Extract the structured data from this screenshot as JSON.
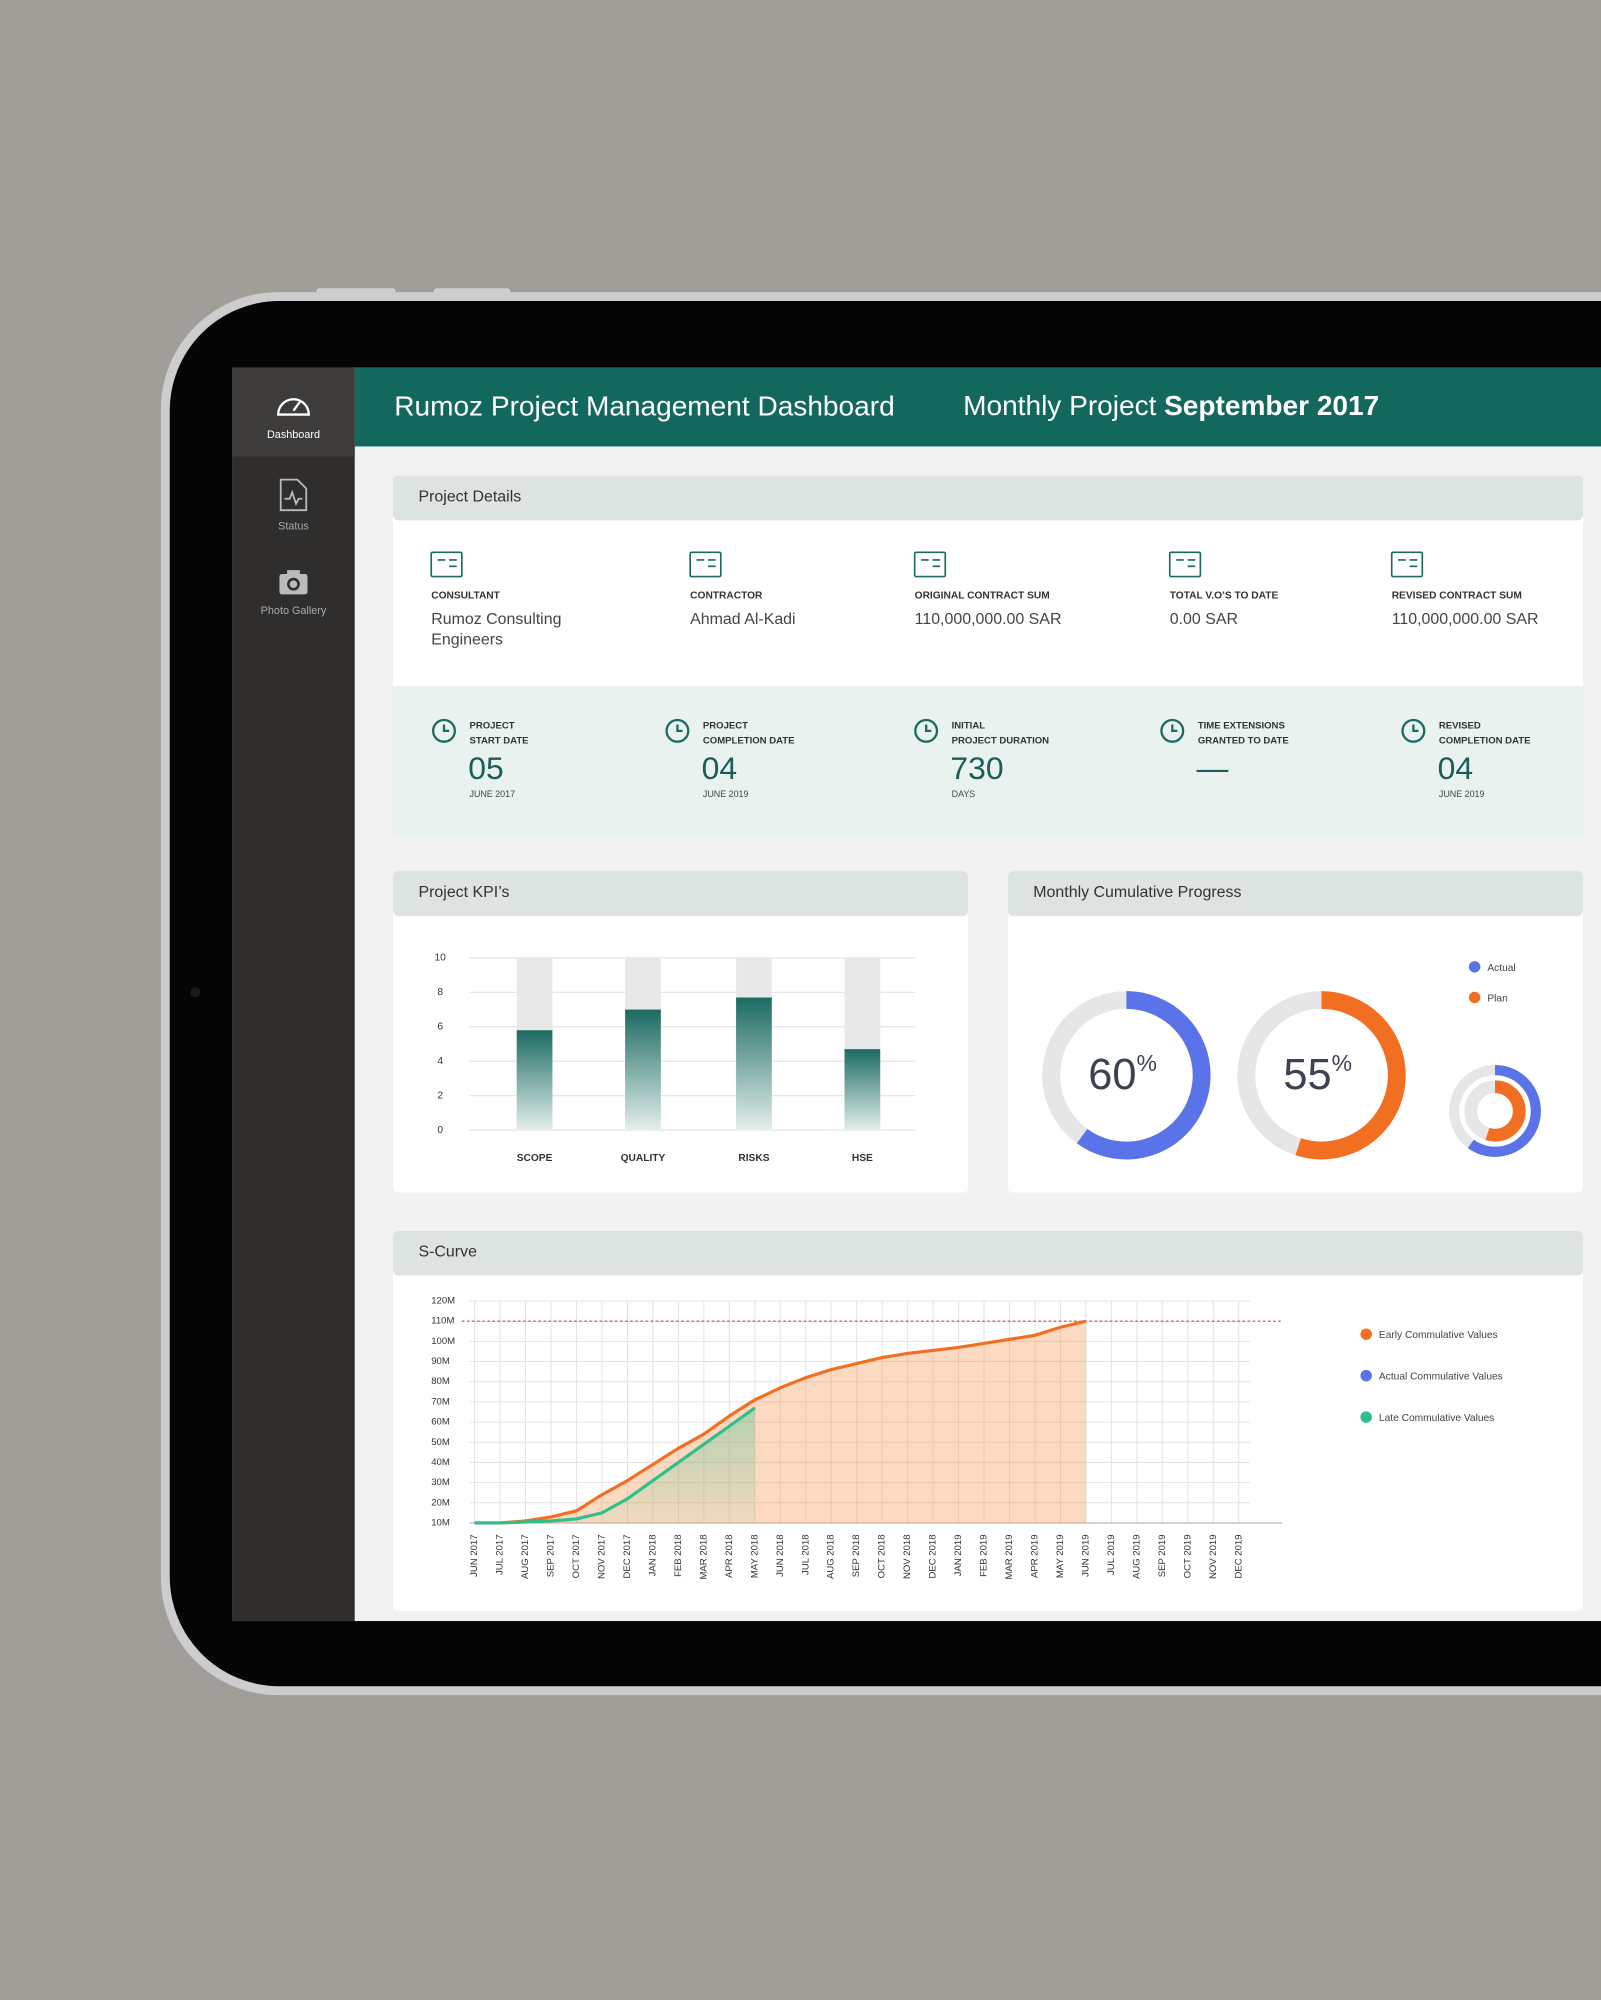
{
  "sidebar": {
    "items": [
      "Dashboard",
      "Status",
      "Photo Gallery"
    ]
  },
  "header": {
    "title": "Rumoz Project Management Dashboard",
    "period_label": "Monthly Project",
    "period": "September 2017"
  },
  "project_details": {
    "title": "Project Details",
    "items": [
      {
        "label": "CONSULTANT",
        "value": [
          "Rumoz Consulting",
          "Engineers"
        ]
      },
      {
        "label": "CONTRACTOR",
        "value": [
          "Ahmad Al-Kadi"
        ]
      },
      {
        "label": "ORIGINAL CONTRACT SUM",
        "value": [
          "110,000,000.00 SAR"
        ]
      },
      {
        "label": "TOTAL V.O’S TO DATE",
        "value": [
          "0.00 SAR"
        ]
      },
      {
        "label": "REVISED CONTRACT SUM",
        "value": [
          "110,000,000.00 SAR"
        ]
      }
    ],
    "dates": [
      {
        "label": [
          "PROJECT",
          "START DATE"
        ],
        "value": "05",
        "sub": "JUNE 2017"
      },
      {
        "label": [
          "PROJECT",
          "COMPLETION DATE"
        ],
        "value": "04",
        "sub": "JUNE 2019"
      },
      {
        "label": [
          "INITIAL",
          "PROJECT DURATION"
        ],
        "value": "730",
        "sub": "DAYS"
      },
      {
        "label": [
          "TIME EXTENSIONS",
          "GRANTED TO DATE"
        ],
        "value": "—"
      },
      {
        "label": [
          "REVISED",
          "COMPLETION DATE"
        ],
        "value": "04",
        "sub": "JUNE 2019"
      }
    ]
  },
  "kpi": {
    "title": "Project KPI’s",
    "type": "bar",
    "categories": [
      "SCOPE",
      "QUALITY",
      "RISKS",
      "HSE"
    ],
    "values": [
      5.8,
      7.0,
      7.7,
      4.7
    ],
    "color": "#1b6b61",
    "ylim": [
      0,
      10
    ],
    "yticks": [
      0,
      2,
      4,
      6,
      8,
      10
    ],
    "grid": true
  },
  "progress": {
    "title": "Monthly Cumulative Progress",
    "type": "donut",
    "unit": "%",
    "series": [
      {
        "name": "Actual",
        "color": "#5b73e8",
        "value": 60
      },
      {
        "name": "Plan",
        "color": "#f26f21",
        "value": 55
      }
    ]
  },
  "s_curve": {
    "title": "S-Curve",
    "type": "line",
    "categories": [
      "JUN 2017",
      "JUL 2017",
      "AUG 2017",
      "SEP 2017",
      "OCT 2017",
      "NOV 2017",
      "DEC 2017",
      "JAN 2018",
      "FEB 2018",
      "MAR 2018",
      "APR 2018",
      "MAY 2018",
      "JUN 2018",
      "JUL 2018",
      "AUG 2018",
      "SEP 2018",
      "OCT 2018",
      "NOV 2018",
      "DEC 2018",
      "JAN 2019",
      "FEB 2019",
      "MAR 2019",
      "APR 2019",
      "MAY 2019",
      "JUN 2019",
      "JUL 2019",
      "AUG 2019",
      "SEP 2019",
      "OCT 2019",
      "NOV 2019",
      "DEC 2019"
    ],
    "ylim": [
      10000000,
      120000000
    ],
    "yticks": [
      {
        "value": 10000000,
        "label": "10M"
      },
      {
        "value": 20000000,
        "label": "20M"
      },
      {
        "value": 30000000,
        "label": "30M"
      },
      {
        "value": 40000000,
        "label": "40M"
      },
      {
        "value": 50000000,
        "label": "50M"
      },
      {
        "value": 60000000,
        "label": "60M"
      },
      {
        "value": 70000000,
        "label": "70M"
      },
      {
        "value": 80000000,
        "label": "80M"
      },
      {
        "value": 90000000,
        "label": "90M"
      },
      {
        "value": 100000000,
        "label": "100M"
      },
      {
        "value": 110000000,
        "label": "110M"
      },
      {
        "value": 120000000,
        "label": "120M"
      }
    ],
    "grid": true,
    "reference_line": 110000000,
    "reference_color": "#e53935",
    "series": [
      {
        "name": "Early Commulative Values",
        "color": "#f26f21",
        "values": [
          10000000,
          10000000,
          11000000,
          13000000,
          16000000,
          24000000,
          31000000,
          39000000,
          47000000,
          54000000,
          63000000,
          71000000,
          77000000,
          82000000,
          86000000,
          89000000,
          92000000,
          94000000,
          95500000,
          97000000,
          99000000,
          101000000,
          103000000,
          107000000,
          110000000,
          null,
          null,
          null,
          null,
          null,
          null
        ]
      },
      {
        "name": "Actual Commulative Values",
        "color": "#5b73e8",
        "values": [
          null,
          null,
          null,
          null,
          null,
          null,
          null,
          null,
          null,
          null,
          null,
          null,
          null,
          null,
          null,
          null,
          null,
          null,
          null,
          null,
          null,
          null,
          null,
          null,
          null,
          null,
          null,
          null,
          null,
          null,
          null
        ]
      },
      {
        "name": "Late Commulative Values",
        "color": "#2fbf8a",
        "values": [
          10000000,
          10000000,
          10500000,
          11000000,
          12000000,
          15000000,
          22000000,
          31000000,
          40000000,
          49000000,
          58000000,
          67000000,
          null,
          null,
          null,
          null,
          null,
          null,
          null,
          null,
          null,
          null,
          null,
          null,
          null,
          null,
          null,
          null,
          null,
          null,
          null
        ]
      }
    ]
  }
}
